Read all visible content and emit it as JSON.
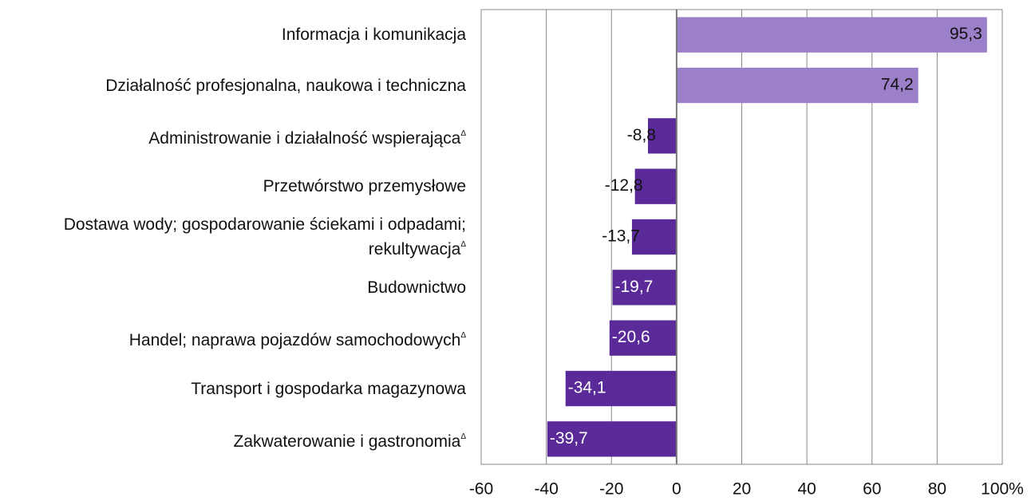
{
  "chart_data": {
    "type": "bar",
    "orientation": "horizontal",
    "categories": [
      "Informacja i komunikacja",
      "Działalność profesjonalna, naukowa i techniczna",
      "Administrowanie i działalność wspierająca",
      "Przetwórstwo przemysłowe",
      "Dostawa wody; gospodarowanie ściekami i odpadami; rekultywacja",
      "Budownictwo",
      "Handel; naprawa pojazdów samochodowych",
      "Transport i gospodarka magazynowa",
      "Zakwaterowanie i gastronomia"
    ],
    "category_notes": [
      null,
      null,
      "Δ",
      null,
      "Δ",
      null,
      "Δ",
      null,
      "Δ"
    ],
    "values": [
      95.3,
      74.2,
      -8.8,
      -12.8,
      -13.7,
      -19.7,
      -20.6,
      -34.1,
      -39.7
    ],
    "value_labels": [
      "95,3",
      "74,2",
      "-8,8",
      "-12,8",
      "-13,7",
      "-19,7",
      "-20,6",
      "-34,1",
      "-39,7"
    ],
    "positive_color": "#9b7fc8",
    "negative_color": "#5a2a99",
    "xlim": [
      -60,
      100
    ],
    "xticks": [
      -60,
      -40,
      -20,
      0,
      20,
      40,
      60,
      80,
      {
        "value": 100,
        "label": "100%"
      }
    ],
    "grid": true
  }
}
